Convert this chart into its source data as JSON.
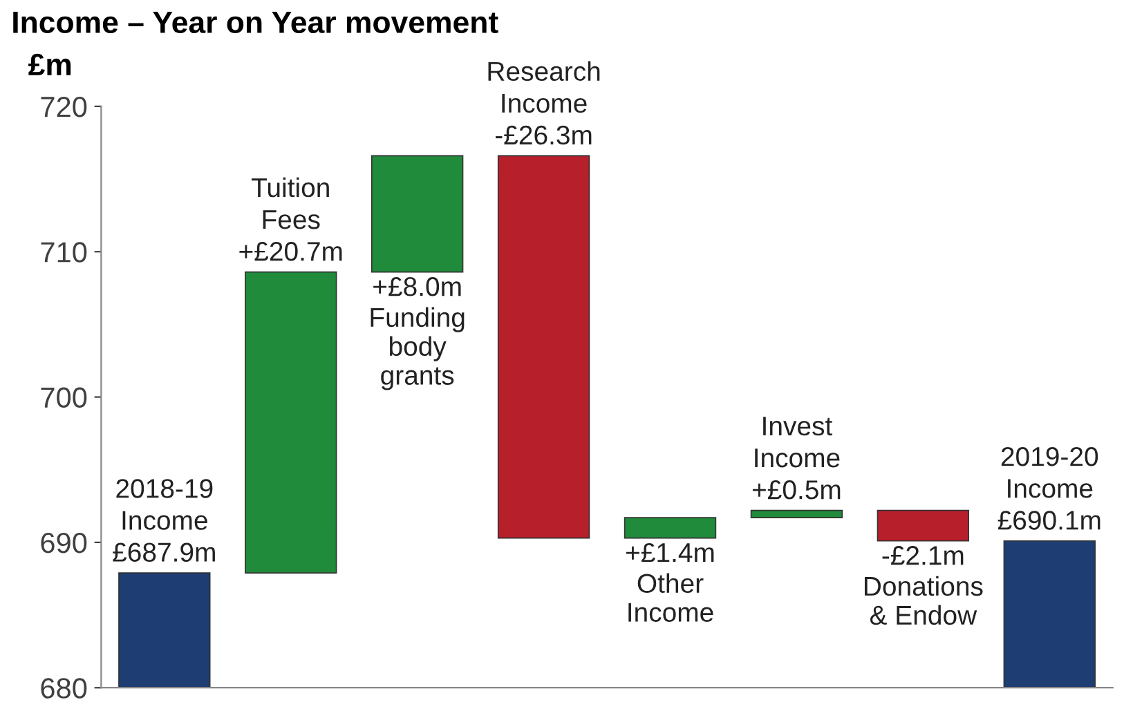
{
  "chart_data": {
    "type": "bar",
    "title": "Income – Year on Year movement",
    "ylabel": "£m",
    "categories": [
      "2018-19\nIncome",
      "Tuition\nFees",
      "Funding\nbody\ngrants",
      "Research\nIncome",
      "Other\nIncome",
      "Invest\nIncome",
      "Donations\n& Endow",
      "2019-20\nIncome"
    ],
    "values": [
      687.9,
      20.7,
      8.0,
      -26.3,
      1.4,
      0.5,
      -2.1,
      690.1
    ],
    "base": [
      null,
      687.9,
      708.6,
      716.6,
      690.3,
      691.7,
      692.2,
      null
    ],
    "colors": [
      "#1d3d73",
      "#1f8b3b",
      "#1f8b3b",
      "#b71f2b",
      "#1f8b3b",
      "#1f8b3b",
      "#b71f2b",
      "#1d3d73"
    ],
    "value_labels": [
      "£687.9m",
      "+£20.7m",
      "+£8.0m",
      "-£26.3m",
      "+£1.4m",
      "+£0.5m",
      "-£2.1m",
      "£690.1m"
    ],
    "ylim": [
      680,
      720
    ],
    "yticks": [
      680,
      690,
      700,
      710,
      720
    ],
    "grid": false,
    "tick_labels": "y"
  }
}
